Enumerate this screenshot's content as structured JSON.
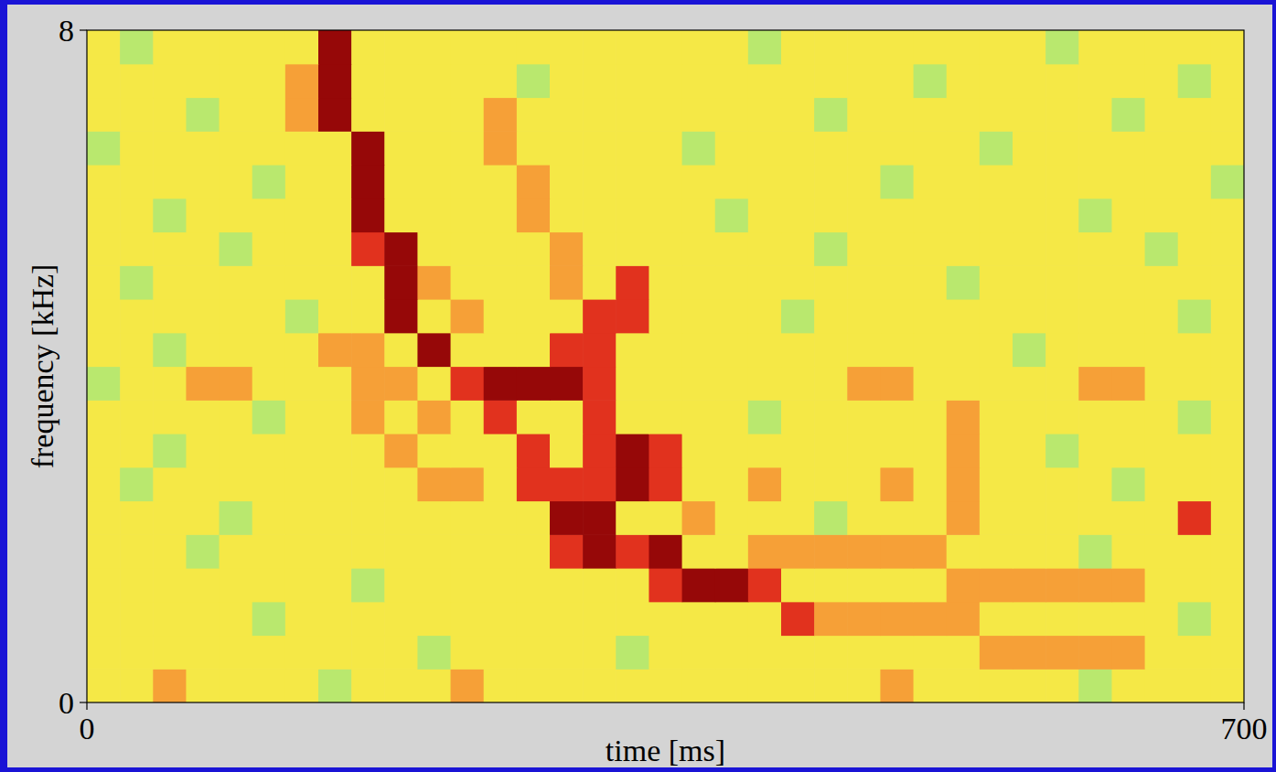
{
  "chart_data": {
    "type": "heatmap",
    "xlabel": "time [ms]",
    "ylabel": "frequency [kHz]",
    "xlim": [
      0,
      700
    ],
    "ylim": [
      0,
      8
    ],
    "xticks": [
      0,
      700
    ],
    "yticks": [
      0,
      8
    ],
    "value_range": [
      0,
      5
    ],
    "values": [
      [
        2,
        2,
        3,
        2,
        2,
        2,
        2,
        1,
        2,
        2,
        2,
        3,
        2,
        2,
        2,
        2,
        2,
        2,
        2,
        2,
        2,
        2,
        2,
        2,
        3,
        2,
        2,
        2,
        2,
        2,
        1,
        2,
        2,
        2,
        2
      ],
      [
        2,
        2,
        2,
        2,
        2,
        2,
        2,
        2,
        2,
        2,
        1,
        2,
        2,
        2,
        2,
        2,
        1,
        2,
        2,
        2,
        2,
        2,
        2,
        2,
        2,
        2,
        2,
        3,
        3,
        3,
        3,
        3,
        2,
        2,
        2
      ],
      [
        2,
        2,
        2,
        2,
        2,
        1,
        2,
        2,
        2,
        2,
        2,
        2,
        2,
        2,
        2,
        2,
        2,
        2,
        2,
        2,
        2,
        4,
        3,
        3,
        3,
        3,
        3,
        2,
        2,
        2,
        2,
        2,
        2,
        1,
        2
      ],
      [
        2,
        2,
        2,
        2,
        2,
        2,
        2,
        2,
        1,
        2,
        2,
        2,
        2,
        2,
        2,
        2,
        2,
        4,
        5,
        5,
        4,
        2,
        2,
        2,
        2,
        2,
        3,
        3,
        3,
        3,
        3,
        3,
        2,
        2,
        2
      ],
      [
        2,
        2,
        2,
        1,
        2,
        2,
        2,
        2,
        2,
        2,
        2,
        2,
        2,
        2,
        4,
        5,
        4,
        5,
        2,
        2,
        3,
        3,
        3,
        3,
        3,
        3,
        2,
        2,
        2,
        2,
        1,
        2,
        2,
        2,
        2
      ],
      [
        2,
        2,
        2,
        2,
        1,
        2,
        2,
        2,
        2,
        2,
        2,
        2,
        2,
        2,
        5,
        5,
        2,
        2,
        3,
        2,
        2,
        2,
        1,
        2,
        2,
        2,
        3,
        2,
        2,
        2,
        2,
        2,
        2,
        4,
        2
      ],
      [
        2,
        1,
        2,
        2,
        2,
        2,
        2,
        2,
        2,
        2,
        3,
        3,
        2,
        4,
        4,
        4,
        5,
        4,
        2,
        2,
        3,
        2,
        2,
        2,
        3,
        2,
        3,
        2,
        2,
        2,
        2,
        1,
        2,
        2,
        2
      ],
      [
        2,
        2,
        1,
        2,
        2,
        2,
        2,
        2,
        2,
        3,
        2,
        2,
        2,
        4,
        2,
        4,
        5,
        4,
        2,
        2,
        2,
        2,
        2,
        2,
        2,
        2,
        3,
        2,
        2,
        1,
        2,
        2,
        2,
        2,
        2
      ],
      [
        2,
        2,
        2,
        2,
        2,
        1,
        2,
        2,
        3,
        2,
        3,
        2,
        4,
        2,
        2,
        4,
        2,
        2,
        2,
        2,
        1,
        2,
        2,
        2,
        2,
        2,
        3,
        2,
        2,
        2,
        2,
        2,
        2,
        1,
        2
      ],
      [
        1,
        2,
        2,
        3,
        3,
        2,
        2,
        2,
        3,
        3,
        2,
        4,
        5,
        5,
        5,
        4,
        2,
        2,
        2,
        2,
        2,
        2,
        2,
        3,
        3,
        2,
        2,
        2,
        2,
        2,
        3,
        3,
        2,
        2,
        2
      ],
      [
        2,
        2,
        1,
        2,
        2,
        2,
        2,
        3,
        3,
        2,
        5,
        2,
        2,
        2,
        4,
        4,
        2,
        2,
        2,
        2,
        2,
        2,
        2,
        2,
        2,
        2,
        2,
        2,
        1,
        2,
        2,
        2,
        2,
        2,
        2
      ],
      [
        2,
        2,
        2,
        2,
        2,
        2,
        1,
        2,
        2,
        5,
        2,
        3,
        2,
        2,
        2,
        4,
        4,
        2,
        2,
        2,
        2,
        1,
        2,
        2,
        2,
        2,
        2,
        2,
        2,
        2,
        2,
        2,
        2,
        1,
        2
      ],
      [
        2,
        1,
        2,
        2,
        2,
        2,
        2,
        2,
        2,
        5,
        3,
        2,
        2,
        2,
        3,
        2,
        4,
        2,
        2,
        2,
        2,
        2,
        2,
        2,
        2,
        2,
        1,
        2,
        2,
        2,
        2,
        2,
        2,
        2,
        2
      ],
      [
        2,
        2,
        2,
        2,
        1,
        2,
        2,
        2,
        4,
        5,
        2,
        2,
        2,
        2,
        3,
        2,
        2,
        2,
        2,
        2,
        2,
        2,
        1,
        2,
        2,
        2,
        2,
        2,
        2,
        2,
        2,
        2,
        1,
        2,
        2
      ],
      [
        2,
        2,
        1,
        2,
        2,
        2,
        2,
        2,
        5,
        2,
        2,
        2,
        2,
        3,
        2,
        2,
        2,
        2,
        2,
        1,
        2,
        2,
        2,
        2,
        2,
        2,
        2,
        2,
        2,
        2,
        1,
        2,
        2,
        2,
        2
      ],
      [
        2,
        2,
        2,
        2,
        2,
        1,
        2,
        2,
        5,
        2,
        2,
        2,
        2,
        3,
        2,
        2,
        2,
        2,
        2,
        2,
        2,
        2,
        2,
        2,
        1,
        2,
        2,
        2,
        2,
        2,
        2,
        2,
        2,
        2,
        1
      ],
      [
        1,
        2,
        2,
        2,
        2,
        2,
        2,
        2,
        5,
        2,
        2,
        2,
        3,
        2,
        2,
        2,
        2,
        2,
        1,
        2,
        2,
        2,
        2,
        2,
        2,
        2,
        2,
        1,
        2,
        2,
        2,
        2,
        2,
        2,
        2
      ],
      [
        2,
        2,
        2,
        1,
        2,
        2,
        3,
        5,
        2,
        2,
        2,
        2,
        3,
        2,
        2,
        2,
        2,
        2,
        2,
        2,
        2,
        2,
        1,
        2,
        2,
        2,
        2,
        2,
        2,
        2,
        2,
        1,
        2,
        2,
        2
      ],
      [
        2,
        2,
        2,
        2,
        2,
        2,
        3,
        5,
        2,
        2,
        2,
        2,
        2,
        1,
        2,
        2,
        2,
        2,
        2,
        2,
        2,
        2,
        2,
        2,
        2,
        1,
        2,
        2,
        2,
        2,
        2,
        2,
        2,
        1,
        2
      ],
      [
        2,
        1,
        2,
        2,
        2,
        2,
        2,
        5,
        2,
        2,
        2,
        2,
        2,
        2,
        2,
        2,
        2,
        2,
        2,
        2,
        1,
        2,
        2,
        2,
        2,
        2,
        2,
        2,
        2,
        1,
        2,
        2,
        2,
        2,
        2
      ]
    ]
  }
}
